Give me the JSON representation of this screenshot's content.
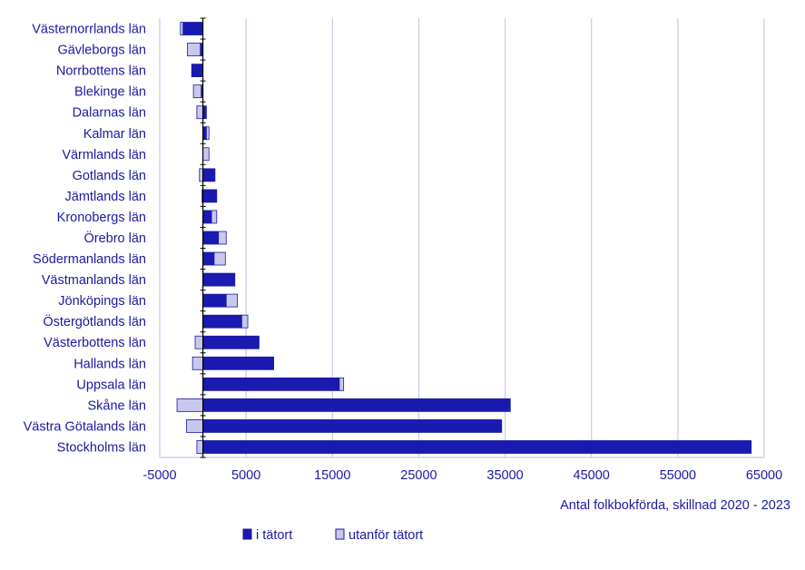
{
  "chart_data": {
    "type": "bar",
    "orientation": "horizontal",
    "stacked": true,
    "categories": [
      "Västernorrlands län",
      "Gävleborgs län",
      "Norrbottens län",
      "Blekinge län",
      "Dalarnas län",
      "Kalmar län",
      "Värmlands län",
      "Gotlands län",
      "Jämtlands län",
      "Kronobergs län",
      "Örebro län",
      "Södermanlands län",
      "Västmanlands län",
      "Jönköpings län",
      "Östergötlands län",
      "Västerbottens län",
      "Hallands län",
      "Uppsala län",
      "Skåne län",
      "Västra Götalands län",
      "Stockholms län"
    ],
    "series": [
      {
        "name": "i tätort",
        "color": "#1a1ab0",
        "values": [
          -2300,
          -300,
          -1300,
          -200,
          400,
          400,
          0,
          1400,
          1600,
          1000,
          1800,
          1300,
          3700,
          2700,
          4500,
          6500,
          8200,
          15800,
          35600,
          34600,
          63500
        ]
      },
      {
        "name": "utanför tätort",
        "color": "#c8c8ec",
        "values": [
          -300,
          -1500,
          0,
          -900,
          -700,
          300,
          700,
          -400,
          -100,
          600,
          900,
          1300,
          0,
          1300,
          700,
          -900,
          -1200,
          500,
          -3000,
          -1900,
          -700
        ]
      }
    ],
    "xlabel": "Antal folkbokförda, skillnad 2020 - 2023",
    "xlim": [
      -5000,
      65000
    ],
    "xticks": [
      -5000,
      5000,
      15000,
      25000,
      35000,
      45000,
      55000,
      65000
    ],
    "xtick_labels": [
      "-5000",
      "5000",
      "15000",
      "25000",
      "35000",
      "45000",
      "55000",
      "65000"
    ],
    "grid": "vertical",
    "legend_position": "bottom"
  }
}
